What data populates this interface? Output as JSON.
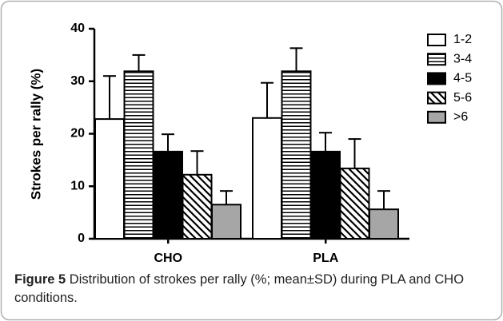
{
  "chart_data": {
    "type": "bar",
    "y_label": "Strokes per rally (%)",
    "categories": [
      "CHO",
      "PLA"
    ],
    "series": [
      {
        "name": "1-2",
        "color": "#ffffff",
        "pattern": "none",
        "values": [
          22.8,
          23.0
        ],
        "errors": [
          8.2,
          6.7
        ]
      },
      {
        "name": "3-4",
        "color": "#ffffff",
        "pattern": "horizontal",
        "values": [
          31.9,
          31.9
        ],
        "errors": [
          3.1,
          4.4
        ]
      },
      {
        "name": "4-5",
        "color": "#000000",
        "pattern": "none",
        "values": [
          16.6,
          16.6
        ],
        "errors": [
          3.3,
          3.6
        ]
      },
      {
        "name": "5-6",
        "color": "#ffffff",
        "pattern": "diagonal",
        "values": [
          12.2,
          13.4
        ],
        "errors": [
          4.5,
          5.6
        ]
      },
      {
        "name": ">6",
        "color": "#a6a6a6",
        "pattern": "none",
        "values": [
          6.5,
          5.6
        ],
        "errors": [
          2.6,
          3.5
        ]
      }
    ],
    "ylim": [
      0,
      40
    ],
    "yticks": [
      0,
      10,
      20,
      30,
      40
    ],
    "grid": false,
    "legend": "right",
    "caption_label": "Figure 5",
    "caption": "Distribution of strokes per rally (%; mean±SD) during PLA and CHO conditions."
  }
}
